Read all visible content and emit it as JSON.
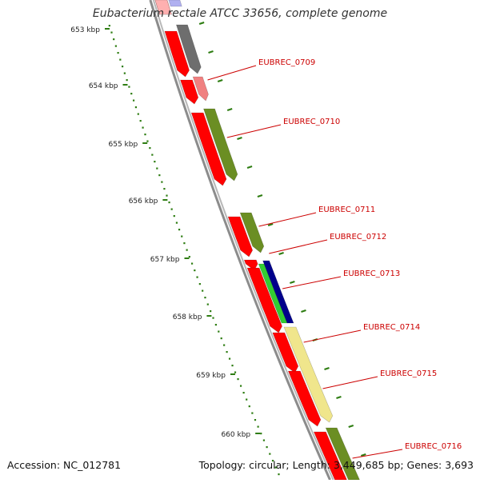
{
  "title": "Eubacterium rectale ATCC 33656, complete genome",
  "accession": "Accession: NC_012781",
  "summary": "Topology: circular; Length: 3,449,685 bp; Genes: 3,693",
  "ruler_ticks": [
    "653 kbp",
    "654 kbp",
    "655 kbp",
    "656 kbp",
    "657 kbp",
    "658 kbp",
    "659 kbp",
    "660 kbp"
  ],
  "gene_labels": [
    "EUBREC_0709",
    "EUBREC_0710",
    "EUBREC_0711",
    "EUBREC_0712",
    "EUBREC_0713",
    "EUBREC_0714",
    "EUBREC_0715",
    "EUBREC_0716"
  ],
  "colors": {
    "cds": "#ff0000",
    "label": "#cc0000",
    "backbone": "#8c8c8c",
    "tick": "#2e7d12",
    "cog_gray": "#6e6e6e",
    "cog_pink": "#f08080",
    "cog_olive": "#6b8e23",
    "cog_green": "#32cd32",
    "cog_navy": "#00008b",
    "cog_khaki": "#f0e68c",
    "cog_lavender": "#b0b0f0"
  }
}
